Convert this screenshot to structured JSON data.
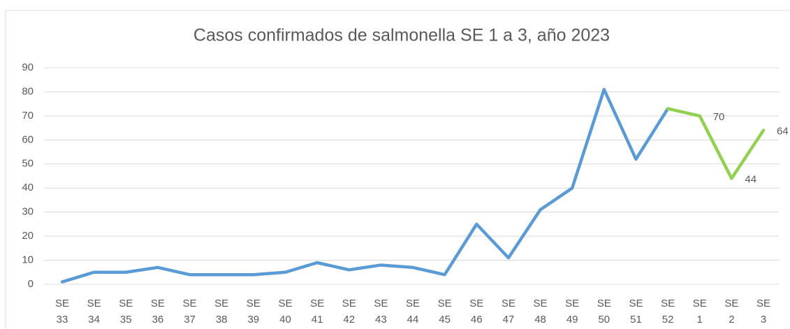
{
  "chart_data": {
    "type": "line",
    "title": "Casos confirmados de salmonella SE 1 a 3, año 2023",
    "categories": [
      "SE 33",
      "SE 34",
      "SE 35",
      "SE 36",
      "SE 37",
      "SE 38",
      "SE 39",
      "SE 40",
      "SE 41",
      "SE 42",
      "SE 43",
      "SE 44",
      "SE 45",
      "SE 46",
      "SE 47",
      "SE 48",
      "SE 49",
      "SE 50",
      "SE 51",
      "SE 52",
      "SE 1",
      "SE 2",
      "SE 3"
    ],
    "series": [
      {
        "color": "#5b9bd5",
        "values": [
          1,
          5,
          5,
          7,
          4,
          4,
          4,
          5,
          9,
          6,
          8,
          7,
          4,
          25,
          11,
          31,
          40,
          81,
          52,
          73,
          null,
          null,
          null
        ]
      },
      {
        "color": "#92d050",
        "values": [
          null,
          null,
          null,
          null,
          null,
          null,
          null,
          null,
          null,
          null,
          null,
          null,
          null,
          null,
          null,
          null,
          null,
          null,
          null,
          73,
          70,
          44,
          64
        ],
        "label_indices": [
          20,
          21,
          22
        ]
      }
    ],
    "ylim": [
      0,
      90
    ],
    "yticks": [
      0,
      10,
      20,
      30,
      40,
      50,
      60,
      70,
      80,
      90
    ],
    "grid": true
  }
}
